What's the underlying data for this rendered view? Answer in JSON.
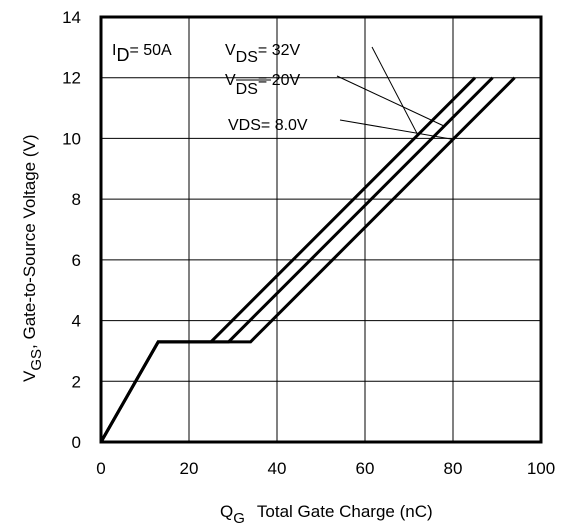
{
  "chart_data": {
    "type": "line",
    "xlabel": {
      "main": "Q",
      "sub": "G",
      "rest": "Total Gate Charge (nC)"
    },
    "ylabel": {
      "main": "V",
      "sub": "GS",
      "rest": ", Gate-to-Source Voltage (V)"
    },
    "xlim": [
      0,
      100
    ],
    "ylim": [
      0,
      14
    ],
    "xticks": [
      "0",
      "20",
      "40",
      "60",
      "80",
      "100"
    ],
    "yticks": [
      "0",
      "2",
      "4",
      "6",
      "8",
      "10",
      "12",
      "14"
    ],
    "grid": true,
    "series": [
      {
        "x": [
          0,
          13,
          25,
          85
        ],
        "y": [
          0,
          3.3,
          3.3,
          12
        ]
      },
      {
        "x": [
          0,
          13,
          29,
          89
        ],
        "y": [
          0,
          3.3,
          3.3,
          12
        ]
      },
      {
        "x": [
          0,
          13,
          34,
          94
        ],
        "y": [
          0,
          3.3,
          3.3,
          12
        ]
      }
    ],
    "annotations": {
      "id": {
        "main": "I",
        "sub": "D",
        "rest": "= 50A"
      },
      "vds32": {
        "main": "V",
        "sub": "DS",
        "rest": "= 32V"
      },
      "vds20": {
        "main": "V",
        "sub": "DS",
        "rest": "= 20V"
      },
      "vds8": {
        "text": "VDS= 8.0V"
      }
    }
  }
}
